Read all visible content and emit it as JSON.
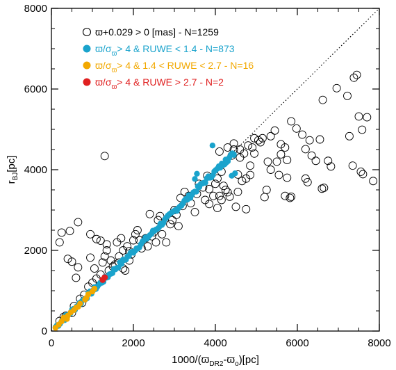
{
  "chart_data": {
    "type": "scatter",
    "title": "",
    "xlim": [
      0,
      8000
    ],
    "ylim": [
      0,
      8000
    ],
    "x_ticks": [
      0,
      2000,
      4000,
      6000,
      8000
    ],
    "y_ticks": [
      0,
      2000,
      4000,
      6000,
      8000
    ],
    "x_tick_labels": [
      "0",
      "2000",
      "4000",
      "6000",
      "8000"
    ],
    "y_tick_labels": [
      "0",
      "2000",
      "4000",
      "6000",
      "8000"
    ],
    "x_minor_step": 500,
    "y_minor_step": 500,
    "xlabel": {
      "main": "1000/(",
      "varpi": "ϖ",
      "sub1": "DR2",
      "minus": "-",
      "varpi2": "ϖ",
      "sub2": "o",
      "tail": ")[pc]"
    },
    "ylabel": {
      "main": "r",
      "sub": "BJ",
      "tail": "[pc]"
    },
    "grid": false,
    "legend_placement": "top-left",
    "identity_line": {
      "from": [
        0,
        0
      ],
      "to": [
        8000,
        8000
      ],
      "style": "dotted",
      "color": "#000000"
    },
    "legend": [
      {
        "marker": "open-circle",
        "color": "#000000",
        "text": "ϖ+0.029 > 0 [mas] - N=1259"
      },
      {
        "marker": "filled-circle",
        "color": "#1aa3cc",
        "prefix": "ϖ/σ",
        "sub": "ϖ",
        "text": "> 4 & RUWE < 1.4 - N=873"
      },
      {
        "marker": "filled-circle",
        "color": "#f2a800",
        "prefix": "ϖ/σ",
        "sub": "ϖ",
        "text": "> 4 & 1.4 < RUWE < 2.7 - N=16"
      },
      {
        "marker": "filled-circle",
        "color": "#e02020",
        "prefix": "ϖ/σ",
        "sub": "ϖ",
        "text": "> 4 &  RUWE > 2.7 - N=2"
      }
    ],
    "series": [
      {
        "name": "ϖ+0.029 > 0 [mas] - N=1259",
        "marker": "open-circle",
        "color": "#000000",
        "points": [
          [
            7450,
            6350
          ],
          [
            7380,
            6280
          ],
          [
            6960,
            6020
          ],
          [
            7220,
            5830
          ],
          [
            6620,
            5730
          ],
          [
            7700,
            5300
          ],
          [
            7500,
            5320
          ],
          [
            7580,
            4990
          ],
          [
            7270,
            4830
          ],
          [
            5850,
            5200
          ],
          [
            5980,
            5020
          ],
          [
            6120,
            4870
          ],
          [
            6300,
            4730
          ],
          [
            6550,
            4750
          ],
          [
            5450,
            4970
          ],
          [
            5350,
            4830
          ],
          [
            5150,
            4780
          ],
          [
            5050,
            4730
          ],
          [
            4950,
            4780
          ],
          [
            5100,
            4680
          ],
          [
            5600,
            4630
          ],
          [
            5700,
            4550
          ],
          [
            6200,
            4510
          ],
          [
            6350,
            4350
          ],
          [
            6450,
            4220
          ],
          [
            6750,
            4220
          ],
          [
            6820,
            4080
          ],
          [
            7350,
            4100
          ],
          [
            7600,
            3890
          ],
          [
            7550,
            3950
          ],
          [
            7850,
            3720
          ],
          [
            5600,
            4380
          ],
          [
            5750,
            4240
          ],
          [
            5500,
            4200
          ],
          [
            5280,
            4200
          ],
          [
            5350,
            4000
          ],
          [
            5550,
            3870
          ],
          [
            5750,
            3800
          ],
          [
            5700,
            3350
          ],
          [
            5820,
            3300
          ],
          [
            5850,
            3330
          ],
          [
            6600,
            3530
          ],
          [
            6650,
            3550
          ],
          [
            6200,
            3780
          ],
          [
            6250,
            3690
          ],
          [
            5200,
            3320
          ],
          [
            5250,
            3500
          ],
          [
            4850,
            3870
          ],
          [
            4750,
            3780
          ],
          [
            4550,
            3450
          ],
          [
            4750,
            3020
          ],
          [
            4500,
            3080
          ],
          [
            4350,
            3330
          ],
          [
            4300,
            3440
          ],
          [
            4200,
            3600
          ],
          [
            4050,
            3780
          ],
          [
            4550,
            3880
          ],
          [
            4650,
            3720
          ],
          [
            4850,
            4100
          ],
          [
            4950,
            4400
          ],
          [
            4700,
            4400
          ],
          [
            4600,
            4300
          ],
          [
            4800,
            4600
          ],
          [
            4400,
            4350
          ],
          [
            1300,
            4340
          ],
          [
            250,
            2440
          ],
          [
            450,
            2480
          ],
          [
            650,
            2700
          ],
          [
            950,
            2400
          ],
          [
            1100,
            2280
          ],
          [
            1200,
            2240
          ],
          [
            1350,
            2150
          ],
          [
            1350,
            2000
          ],
          [
            950,
            1820
          ],
          [
            650,
            1580
          ],
          [
            500,
            1720
          ],
          [
            400,
            1790
          ],
          [
            600,
            1320
          ],
          [
            200,
            2200
          ],
          [
            1050,
            1550
          ],
          [
            1250,
            1700
          ],
          [
            1450,
            1750
          ],
          [
            1650,
            1850
          ],
          [
            1750,
            2000
          ],
          [
            1900,
            1980
          ],
          [
            2000,
            2250
          ],
          [
            2150,
            2250
          ],
          [
            2300,
            2300
          ],
          [
            2500,
            2450
          ],
          [
            2700,
            2400
          ],
          [
            2900,
            2650
          ],
          [
            3050,
            2880
          ],
          [
            3200,
            3100
          ],
          [
            3400,
            3170
          ],
          [
            3550,
            3400
          ],
          [
            3700,
            3560
          ],
          [
            3850,
            3520
          ],
          [
            4000,
            3650
          ],
          [
            1600,
            2200
          ],
          [
            1700,
            2300
          ],
          [
            2100,
            2500
          ],
          [
            1800,
            1500
          ],
          [
            1550,
            1650
          ],
          [
            1300,
            1850
          ],
          [
            900,
            1100
          ],
          [
            1000,
            1200
          ],
          [
            1200,
            1400
          ],
          [
            1400,
            1500
          ],
          [
            800,
            900
          ],
          [
            700,
            800
          ],
          [
            550,
            620
          ],
          [
            300,
            350
          ],
          [
            200,
            250
          ],
          [
            2400,
            2900
          ],
          [
            2600,
            2750
          ],
          [
            3000,
            3000
          ],
          [
            3250,
            3450
          ],
          [
            3600,
            3650
          ],
          [
            3800,
            3850
          ],
          [
            2800,
            2200
          ],
          [
            3100,
            2600
          ],
          [
            3500,
            2950
          ],
          [
            3750,
            3250
          ],
          [
            4100,
            3350
          ],
          [
            4250,
            3500
          ],
          [
            4150,
            3250
          ],
          [
            2350,
            2100
          ],
          [
            2550,
            2200
          ],
          [
            2200,
            2050
          ],
          [
            1900,
            1750
          ],
          [
            4100,
            4450
          ],
          [
            4300,
            4550
          ],
          [
            4450,
            4500
          ],
          [
            4450,
            4650
          ],
          [
            4150,
            3950
          ],
          [
            3950,
            3350
          ],
          [
            4050,
            3050
          ],
          [
            3850,
            3150
          ],
          [
            2050,
            2400
          ],
          [
            1850,
            2100
          ],
          [
            2650,
            2850
          ],
          [
            3350,
            3350
          ],
          [
            3150,
            3300
          ],
          [
            1950,
            1900
          ],
          [
            2450,
            2350
          ],
          [
            1500,
            1600
          ],
          [
            1650,
            1700
          ],
          [
            1100,
            1300
          ],
          [
            750,
            700
          ],
          [
            500,
            450
          ],
          [
            350,
            380
          ],
          [
            1750,
            1550
          ],
          [
            2950,
            2750
          ],
          [
            4600,
            4500
          ],
          [
            4900,
            4550
          ]
        ]
      },
      {
        "name": "ϖ/σϖ > 4 & RUWE < 1.4 - N=873",
        "marker": "filled-circle",
        "color": "#1aa3cc",
        "band": {
          "x_from": 100,
          "x_to": 4450,
          "slope": 0.99,
          "jitter": 55,
          "count": 120
        },
        "extra_points": [
          [
            3930,
            4600
          ],
          [
            4250,
            4250
          ],
          [
            4480,
            3910
          ],
          [
            4400,
            3850
          ],
          [
            4450,
            4380
          ],
          [
            3550,
            3900
          ],
          [
            3500,
            3770
          ]
        ]
      },
      {
        "name": "ϖ/σϖ > 4 & 1.4 < RUWE < 2.7 - N=16",
        "marker": "filled-circle",
        "color": "#f2a800",
        "points": [
          [
            100,
            80
          ],
          [
            180,
            160
          ],
          [
            250,
            240
          ],
          [
            300,
            330
          ],
          [
            400,
            380
          ],
          [
            470,
            460
          ],
          [
            550,
            520
          ],
          [
            650,
            600
          ],
          [
            700,
            680
          ],
          [
            850,
            820
          ],
          [
            900,
            910
          ],
          [
            1000,
            980
          ],
          [
            1050,
            1050
          ],
          [
            380,
            300
          ],
          [
            600,
            580
          ],
          [
            820,
            780
          ]
        ]
      },
      {
        "name": "ϖ/σϖ > 4 &  RUWE > 2.7 - N=2",
        "marker": "filled-circle",
        "color": "#e02020",
        "points": [
          [
            1250,
            1270
          ],
          [
            1300,
            1330
          ]
        ]
      }
    ]
  }
}
